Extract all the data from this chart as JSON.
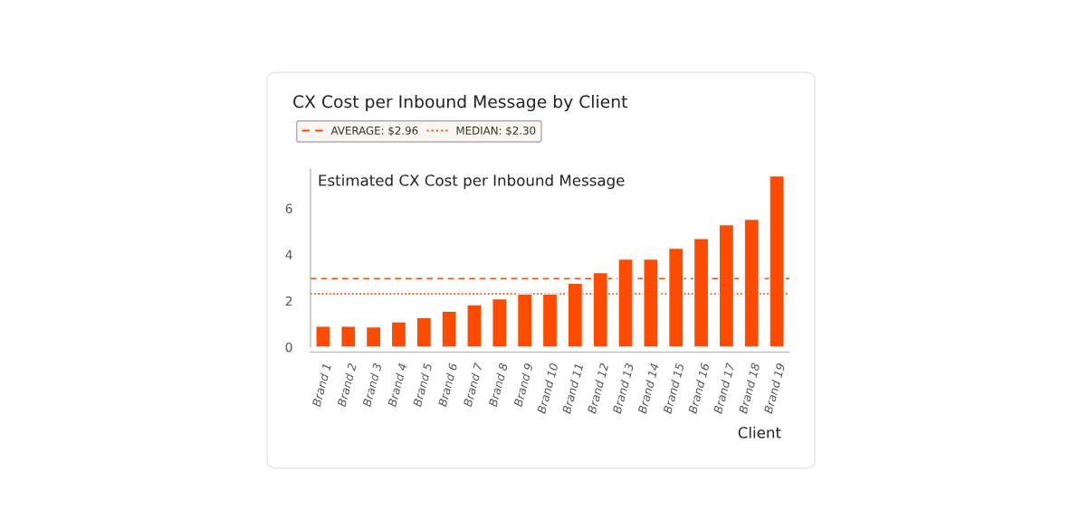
{
  "chart_data": {
    "type": "bar",
    "title": "CX Cost per Inbound Message by Client",
    "categories": [
      "Brand 1",
      "Brand 2",
      "Brand 3",
      "Brand 4",
      "Brand 5",
      "Brand 6",
      "Brand 7",
      "Brand 8",
      "Brand 9",
      "Brand 10",
      "Brand 11",
      "Brand 12",
      "Brand 13",
      "Brand 14",
      "Brand 15",
      "Brand 16",
      "Brand 17",
      "Brand 18",
      "Brand 19"
    ],
    "values": [
      0.91,
      0.91,
      0.88,
      1.09,
      1.28,
      1.55,
      1.83,
      2.09,
      2.29,
      2.29,
      2.76,
      3.22,
      3.81,
      3.81,
      4.28,
      4.7,
      5.29,
      5.53,
      7.4
    ],
    "color": "#ff4b00",
    "ylabel": "Estimated CX Cost per Inbound Message",
    "xlabel": "Client",
    "ylim": [
      0,
      7.7
    ],
    "yticks": [
      0,
      2,
      4,
      6
    ],
    "grid": false,
    "legend": "top left",
    "ref_lines": [
      {
        "axis": "y",
        "value": 2.96,
        "label": "AVERAGE: $2.96",
        "color": "#ff4b00",
        "line_style": "dashed"
      },
      {
        "axis": "y",
        "value": 2.3,
        "label": "MEDIAN: $2.30",
        "color": "#ff4b00",
        "line_style": "dotted"
      }
    ]
  }
}
